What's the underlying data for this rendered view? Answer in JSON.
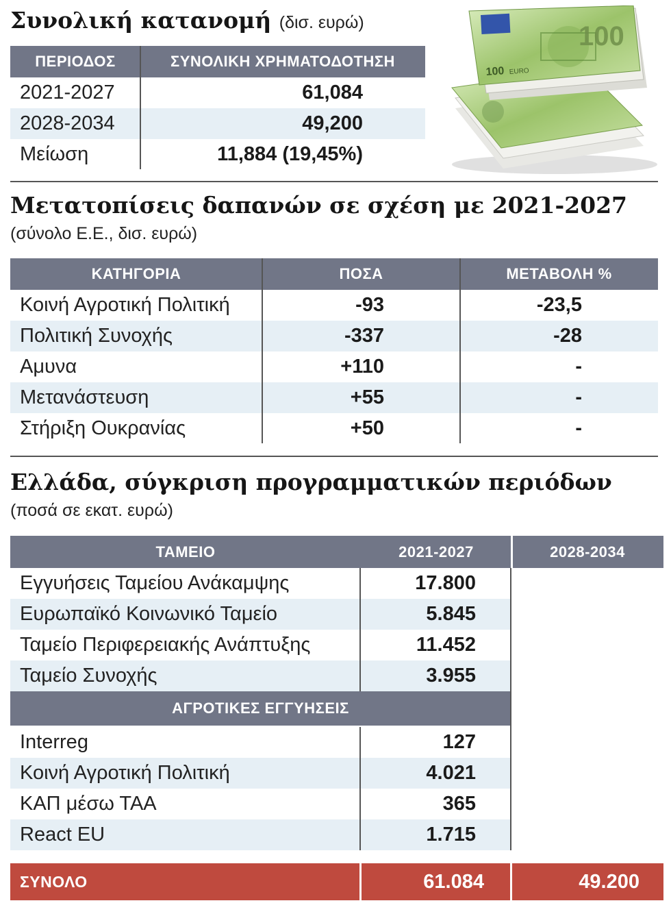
{
  "section1": {
    "title": "Συνολική κατανομή",
    "unit": "(δισ. ευρώ)",
    "headers": [
      "ΠΕΡΙΟΔΟΣ",
      "ΣΥΝΟΛΙΚΗ ΧΡΗΜΑΤΟΔΟΤΗΣΗ"
    ],
    "rows": [
      {
        "label": "2021-2027",
        "value": "61,084"
      },
      {
        "label": "2028-2034",
        "value": "49,200"
      },
      {
        "label": "Μείωση",
        "value": "11,884 (19,45%)"
      }
    ]
  },
  "section2": {
    "title": "Μετατοπίσεις δαπανών σε σχέση με 2021-2027",
    "subtitle": "(σύνολο Ε.Ε., δισ. ευρώ)",
    "headers": [
      "ΚΑΤΗΓΟΡΙΑ",
      "ΠΟΣΑ",
      "ΜΕΤΑΒΟΛΗ %"
    ],
    "rows": [
      {
        "label": "Κοινή Αγροτική Πολιτική",
        "amount": "-93",
        "change": "-23,5"
      },
      {
        "label": "Πολιτική Συνοχής",
        "amount": "-337",
        "change": "-28"
      },
      {
        "label": "Αμυνα",
        "amount": "+110",
        "change": "-"
      },
      {
        "label": "Μετανάστευση",
        "amount": "+55",
        "change": "-"
      },
      {
        "label": "Στήριξη Ουκρανίας",
        "amount": "+50",
        "change": "-"
      }
    ]
  },
  "section3": {
    "title": "Ελλάδα, σύγκριση προγραμματικών περιόδων",
    "subtitle": "(ποσά σε εκατ. ευρώ)",
    "headers": [
      "ΤΑΜΕΙΟ",
      "2021-2027",
      "2028-2034"
    ],
    "rows_a": [
      {
        "label": "Εγγυήσεις Ταμείου Ανάκαμψης",
        "value": "17.800"
      },
      {
        "label": "Ευρωπαϊκό Κοινωνικό Ταμείο",
        "value": "5.845"
      },
      {
        "label": "Ταμείο Περιφερειακής Ανάπτυξης",
        "value": "11.452"
      },
      {
        "label": "Ταμείο Συνοχής",
        "value": "3.955"
      }
    ],
    "subheader": "ΑΓΡΟΤΙΚΕΣ ΕΓΓΥΗΣΕΙΣ",
    "rows_b": [
      {
        "label": "Interreg",
        "value": "127"
      },
      {
        "label": "Κοινή Αγροτική Πολιτική",
        "value": "4.021"
      },
      {
        "label": "ΚΑΠ μέσω ΤΑΑ",
        "value": "365"
      },
      {
        "label": "React EU",
        "value": "1.715"
      }
    ],
    "total": {
      "label": "ΣΥΝΟΛΟ",
      "value_2021": "61.084",
      "value_2028": "49.200"
    }
  },
  "image": {
    "banknote_denomination": "100",
    "banknote_text": "EURO"
  },
  "colors": {
    "header": "#717687",
    "row_alt": "#e6eff5",
    "total": "#bf4a3e",
    "banknote": "#9cc36a"
  }
}
